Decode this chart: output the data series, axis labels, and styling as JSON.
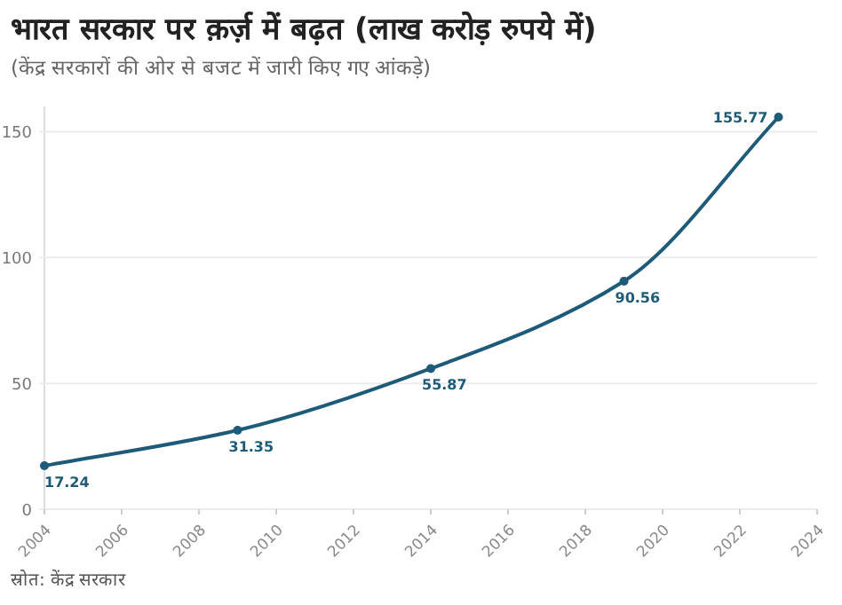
{
  "chart_data": {
    "type": "line",
    "title": "भारत सरकार पर क़र्ज़ में बढ़त (लाख करोड़ रुपये में)",
    "subtitle": "(केंद्र सरकारों की ओर से बजट में जारी किए गए आंकड़े)",
    "annotations": [
      "स्रोत: केंद्र सरकार"
    ],
    "x": [
      2004,
      2009,
      2014,
      2019,
      2023
    ],
    "series": [
      {
        "color": "#1d5b79",
        "values": [
          17.24,
          31.35,
          55.87,
          90.56,
          155.77
        ]
      }
    ],
    "xlim": [
      2004,
      2024
    ],
    "xticks": [
      2004,
      2006,
      2008,
      2010,
      2012,
      2014,
      2016,
      2018,
      2020,
      2022,
      2024
    ],
    "ylim": [
      0,
      160
    ],
    "yticks": [
      0,
      50,
      100,
      150
    ],
    "grid": "y",
    "marker": "circle",
    "line_style": "solid",
    "data_labels": true
  }
}
